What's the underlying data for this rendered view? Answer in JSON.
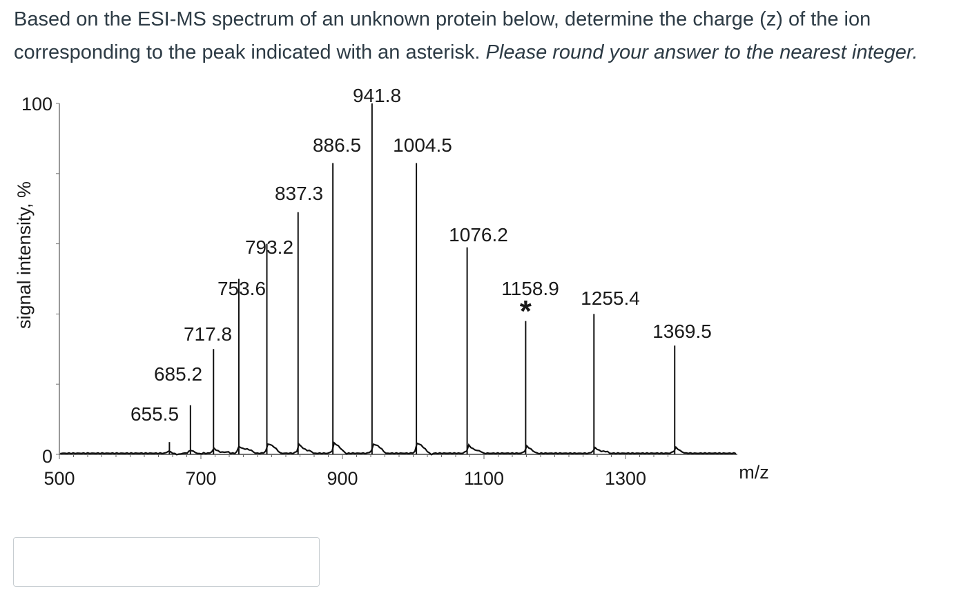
{
  "question": {
    "text": "Based on the ESI-MS spectrum of an unknown protein below, determine the charge (z) of the ion corresponding to the peak indicated with an asterisk.",
    "instruction": "Please round your answer to the nearest integer."
  },
  "answer": {
    "value": "",
    "placeholder": ""
  },
  "chart_data": {
    "type": "line",
    "title": "",
    "xlabel": "m/z",
    "ylabel": "signal intensity, %",
    "xlim": [
      500,
      1360
    ],
    "ylim": [
      0,
      100
    ],
    "x_ticks": [
      "500",
      "700",
      "900",
      "1100",
      "1300"
    ],
    "x_tick_values": [
      500,
      700,
      900,
      1100,
      1300
    ],
    "y_ticks": [
      "0",
      "100"
    ],
    "y_tick_values": [
      0,
      100
    ],
    "marker": "*",
    "marked_peak": 1158.9,
    "peaks": [
      {
        "mz": 655.5,
        "intensity": 3.5,
        "label": "655.5"
      },
      {
        "mz": 685.2,
        "intensity": 14,
        "label": "685.2"
      },
      {
        "mz": 717.8,
        "intensity": 30,
        "label": "717.8"
      },
      {
        "mz": 753.6,
        "intensity": 50,
        "label": "753.6"
      },
      {
        "mz": 793.2,
        "intensity": 60,
        "label": "793.2"
      },
      {
        "mz": 837.3,
        "intensity": 69,
        "label": "837.3"
      },
      {
        "mz": 886.5,
        "intensity": 83,
        "label": "886.5"
      },
      {
        "mz": 941.8,
        "intensity": 100,
        "label": "941.8"
      },
      {
        "mz": 1004.5,
        "intensity": 83,
        "label": "1004.5"
      },
      {
        "mz": 1076.2,
        "intensity": 59,
        "label": "1076.2"
      },
      {
        "mz": 1158.9,
        "intensity": 38,
        "label": "1158.9"
      },
      {
        "mz": 1255.4,
        "intensity": 40,
        "label": "1255.4"
      },
      {
        "mz": 1369.5,
        "intensity": 31,
        "label": "1369.5"
      }
    ]
  }
}
